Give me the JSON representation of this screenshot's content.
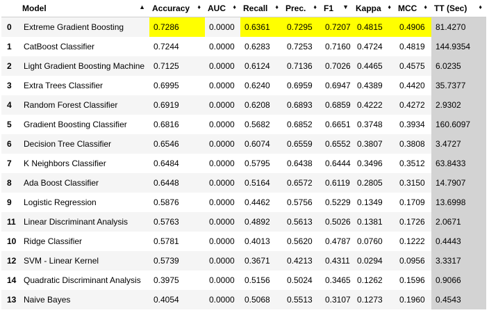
{
  "headers": {
    "index": "",
    "model": "Model",
    "accuracy": "Accuracy",
    "auc": "AUC",
    "recall": "Recall",
    "prec": "Prec.",
    "f1": "F1",
    "kappa": "Kappa",
    "mcc": "MCC",
    "tt": "TT (Sec)"
  },
  "sort_icons": {
    "unsorted": "sort-arrows-icon",
    "descending": "sort-desc-icon"
  },
  "highlight_color": "#ffff00",
  "tt_column_color": "#d3d3d3",
  "rows": [
    {
      "idx": "0",
      "model": "Extreme Gradient Boosting",
      "accuracy": "0.7286",
      "auc": "0.0000",
      "recall": "0.6361",
      "prec": "0.7295",
      "f1": "0.7207",
      "kappa": "0.4815",
      "mcc": "0.4906",
      "tt": "81.4270",
      "highlight": true
    },
    {
      "idx": "1",
      "model": "CatBoost Classifier",
      "accuracy": "0.7244",
      "auc": "0.0000",
      "recall": "0.6283",
      "prec": "0.7253",
      "f1": "0.7160",
      "kappa": "0.4724",
      "mcc": "0.4819",
      "tt": "144.9354"
    },
    {
      "idx": "2",
      "model": "Light Gradient Boosting Machine",
      "accuracy": "0.7125",
      "auc": "0.0000",
      "recall": "0.6124",
      "prec": "0.7136",
      "f1": "0.7026",
      "kappa": "0.4465",
      "mcc": "0.4575",
      "tt": "6.0235"
    },
    {
      "idx": "3",
      "model": "Extra Trees Classifier",
      "accuracy": "0.6995",
      "auc": "0.0000",
      "recall": "0.6240",
      "prec": "0.6959",
      "f1": "0.6947",
      "kappa": "0.4389",
      "mcc": "0.4420",
      "tt": "35.7377"
    },
    {
      "idx": "4",
      "model": "Random Forest Classifier",
      "accuracy": "0.6919",
      "auc": "0.0000",
      "recall": "0.6208",
      "prec": "0.6893",
      "f1": "0.6859",
      "kappa": "0.4222",
      "mcc": "0.4272",
      "tt": "2.9302"
    },
    {
      "idx": "5",
      "model": "Gradient Boosting Classifier",
      "accuracy": "0.6816",
      "auc": "0.0000",
      "recall": "0.5682",
      "prec": "0.6852",
      "f1": "0.6651",
      "kappa": "0.3748",
      "mcc": "0.3934",
      "tt": "160.6097"
    },
    {
      "idx": "6",
      "model": "Decision Tree Classifier",
      "accuracy": "0.6546",
      "auc": "0.0000",
      "recall": "0.6074",
      "prec": "0.6559",
      "f1": "0.6552",
      "kappa": "0.3807",
      "mcc": "0.3808",
      "tt": "3.4727"
    },
    {
      "idx": "7",
      "model": "K Neighbors Classifier",
      "accuracy": "0.6484",
      "auc": "0.0000",
      "recall": "0.5795",
      "prec": "0.6438",
      "f1": "0.6444",
      "kappa": "0.3496",
      "mcc": "0.3512",
      "tt": "63.8433"
    },
    {
      "idx": "8",
      "model": "Ada Boost Classifier",
      "accuracy": "0.6448",
      "auc": "0.0000",
      "recall": "0.5164",
      "prec": "0.6572",
      "f1": "0.6119",
      "kappa": "0.2805",
      "mcc": "0.3150",
      "tt": "14.7907"
    },
    {
      "idx": "9",
      "model": "Logistic Regression",
      "accuracy": "0.5876",
      "auc": "0.0000",
      "recall": "0.4462",
      "prec": "0.5756",
      "f1": "0.5229",
      "kappa": "0.1349",
      "mcc": "0.1709",
      "tt": "13.6998"
    },
    {
      "idx": "11",
      "model": "Linear Discriminant Analysis",
      "accuracy": "0.5763",
      "auc": "0.0000",
      "recall": "0.4892",
      "prec": "0.5613",
      "f1": "0.5026",
      "kappa": "0.1381",
      "mcc": "0.1726",
      "tt": "2.0671"
    },
    {
      "idx": "10",
      "model": "Ridge Classifier",
      "accuracy": "0.5781",
      "auc": "0.0000",
      "recall": "0.4013",
      "prec": "0.5620",
      "f1": "0.4787",
      "kappa": "0.0760",
      "mcc": "0.1222",
      "tt": "0.4443"
    },
    {
      "idx": "12",
      "model": "SVM - Linear Kernel",
      "accuracy": "0.5739",
      "auc": "0.0000",
      "recall": "0.3671",
      "prec": "0.4213",
      "f1": "0.4311",
      "kappa": "0.0294",
      "mcc": "0.0956",
      "tt": "3.3317"
    },
    {
      "idx": "14",
      "model": "Quadratic Discriminant Analysis",
      "accuracy": "0.3975",
      "auc": "0.0000",
      "recall": "0.5156",
      "prec": "0.5024",
      "f1": "0.3465",
      "kappa": "0.1262",
      "mcc": "0.1596",
      "tt": "0.9066"
    },
    {
      "idx": "13",
      "model": "Naive Bayes",
      "accuracy": "0.4054",
      "auc": "0.0000",
      "recall": "0.5068",
      "prec": "0.5513",
      "f1": "0.3107",
      "kappa": "0.1273",
      "mcc": "0.1960",
      "tt": "0.4543"
    }
  ]
}
